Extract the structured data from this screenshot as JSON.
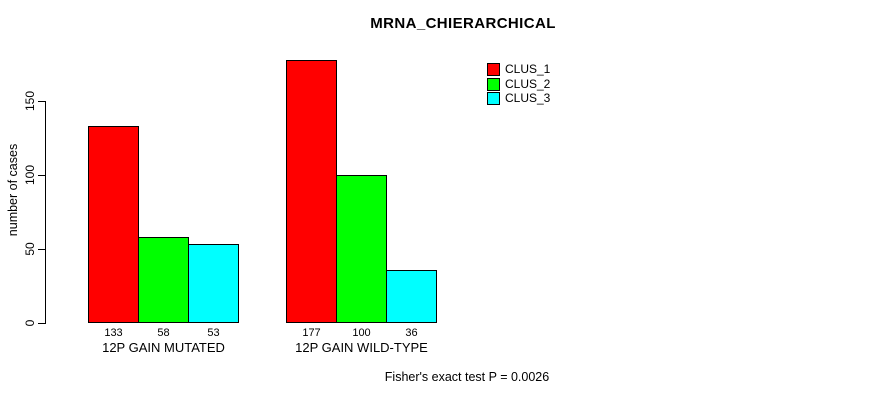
{
  "chart_data": {
    "type": "bar",
    "title": "MRNA_CHIERARCHICAL",
    "categories": [
      "12P GAIN MUTATED",
      "12P GAIN WILD-TYPE"
    ],
    "series": [
      {
        "name": "CLUS_1",
        "color": "#ff0000",
        "values": [
          133,
          177
        ]
      },
      {
        "name": "CLUS_2",
        "color": "#00ff00",
        "values": [
          58,
          100
        ]
      },
      {
        "name": "CLUS_3",
        "color": "#00ffff",
        "values": [
          53,
          36
        ]
      }
    ],
    "ylabel": "number of cases",
    "xlabel": "",
    "yticks": [
      0,
      50,
      100,
      150
    ],
    "ylim": [
      0,
      185
    ],
    "grid": false,
    "legend_position": "top-right",
    "bar_value_labels_position": "below-bars",
    "annotation": "Fisher's exact test P = 0.0026"
  },
  "colors": {
    "background": "#ffffff",
    "axis": "#000000",
    "text": "#000000"
  }
}
